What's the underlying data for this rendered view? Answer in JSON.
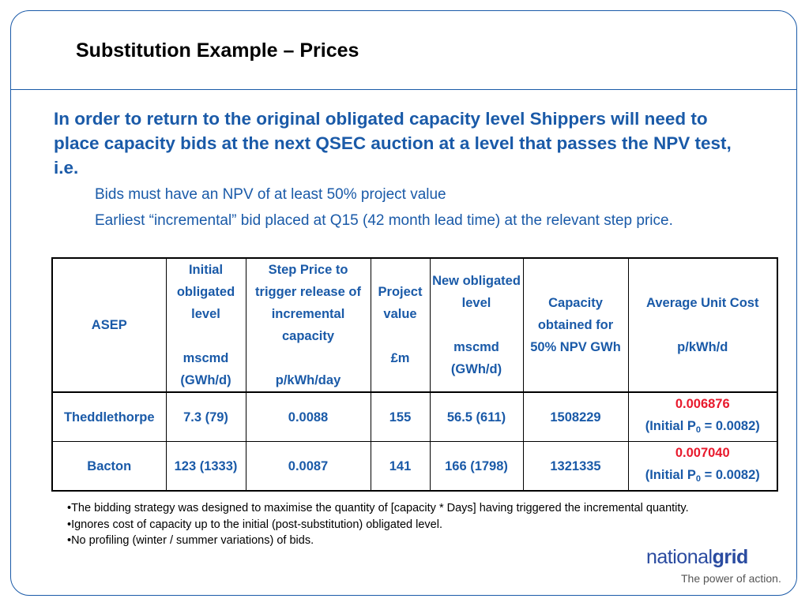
{
  "slide": {
    "title": "Substitution Example – Prices",
    "intro": "In order to return to the original obligated capacity level Shippers will need to place capacity bids at the next QSEC auction at a level that passes the NPV test, i.e.",
    "bullets": [
      "Bids must have an NPV of at least 50% project value",
      "Earliest “incremental” bid placed at Q15 (42 month lead time) at the relevant step price."
    ]
  },
  "table": {
    "headers": {
      "asep": "ASEP",
      "initial": "Initial obligated level",
      "initial_unit": "mscmd (GWh/d)",
      "step": "Step Price to trigger release of incremental capacity",
      "step_unit": "p/kWh/day",
      "project": "Project value",
      "project_unit": "£m",
      "new": "New obligated level",
      "new_unit": "mscmd (GWh/d)",
      "capacity": "Capacity obtained for 50% NPV GWh",
      "avg": "Average Unit Cost",
      "avg_unit": "p/kWh/d"
    },
    "rows": [
      {
        "asep": "Theddlethorpe",
        "initial": "7.3 (79)",
        "step": "0.0088",
        "project": "155",
        "new": "56.5 (611)",
        "capacity": "1508229",
        "avg_value": "0.006876",
        "avg_note_prefix": "(Initial P",
        "avg_note_sub": "0",
        "avg_note_suffix": " = 0.0082)"
      },
      {
        "asep": "Bacton",
        "initial": "123 (1333)",
        "step": "0.0087",
        "project": "141",
        "new": "166 (1798)",
        "capacity": "1321335",
        "avg_value": "0.007040",
        "avg_note_prefix": "(Initial P",
        "avg_note_sub": "0",
        "avg_note_suffix": " = 0.0082)"
      }
    ]
  },
  "notes": [
    "•The bidding strategy was designed to maximise the quantity of [capacity * Days] having triggered the incremental quantity.",
    "•Ignores cost of capacity up to the initial (post-substitution) obligated level.",
    "•No profiling (winter / summer variations) of bids."
  ],
  "branding": {
    "logo_part1": "national",
    "logo_part2": "grid",
    "tagline": "The power of action."
  },
  "colors": {
    "accent_blue": "#1a5aa8",
    "highlight_red": "#e8192c"
  }
}
